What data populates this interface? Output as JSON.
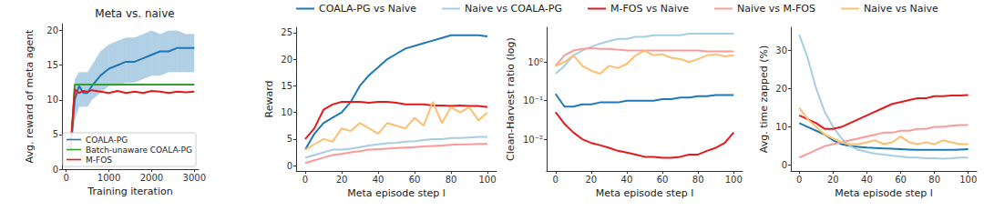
{
  "chart_data": [
    {
      "type": "line",
      "title": "Meta vs. naive",
      "xlabel": "Training iteration",
      "ylabel": "Avg. reward of meta agent",
      "x": [
        100,
        200,
        300,
        400,
        500,
        600,
        800,
        1000,
        1200,
        1400,
        1600,
        1800,
        2000,
        2200,
        2400,
        2600,
        2800,
        3000
      ],
      "xlim": [
        -100,
        3100
      ],
      "xticks": [
        0,
        1000,
        2000,
        3000
      ],
      "ylim": [
        0,
        21
      ],
      "yticks": [
        0,
        5,
        10,
        15,
        20
      ],
      "grid": false,
      "legend": "lower right",
      "series": [
        {
          "name": "COALA-PG",
          "color": "#1f78b4",
          "values": [
            3,
            10,
            12,
            11,
            11,
            12,
            13.5,
            14.5,
            15,
            15.5,
            15.5,
            16,
            16.5,
            17,
            17,
            17.5,
            17.5,
            17.5
          ],
          "lower": [
            1,
            7,
            9,
            9,
            9,
            10,
            11,
            12,
            12,
            12.5,
            12.5,
            13,
            13.5,
            13.5,
            14,
            14,
            14,
            14
          ],
          "upper": [
            5,
            13,
            14,
            14,
            14,
            15,
            17,
            18,
            18.5,
            19,
            19,
            19.5,
            20,
            19.5,
            20,
            20,
            19.5,
            19.5
          ]
        },
        {
          "name": "Batch-unaware COALA-PG",
          "color": "#33a02c",
          "values": [
            2,
            12.2,
            12.2,
            12.2,
            12.2,
            12.2,
            12.2,
            12.2,
            12.2,
            12.2,
            12.2,
            12.2,
            12.2,
            12.2,
            12.2,
            12.2,
            12.2,
            12.2
          ]
        },
        {
          "name": "M-FOS",
          "color": "#e31a1c",
          "values": [
            3,
            11.5,
            11,
            11.3,
            11.2,
            11.4,
            11.2,
            11,
            11.3,
            11,
            11.2,
            11,
            11.3,
            11.2,
            11,
            11.2,
            11.1,
            11.2
          ]
        }
      ]
    },
    {
      "type": "line",
      "xlabel": "Meta episode step l",
      "ylabel": "Reward",
      "x": [
        0,
        5,
        10,
        15,
        20,
        25,
        30,
        35,
        40,
        45,
        50,
        55,
        60,
        65,
        70,
        75,
        80,
        85,
        90,
        95,
        100
      ],
      "xlim": [
        -5,
        105
      ],
      "xticks": [
        0,
        20,
        40,
        60,
        80,
        100
      ],
      "ylim": [
        -1,
        26
      ],
      "yticks": [
        0,
        5,
        10,
        15,
        20,
        25
      ],
      "grid": false,
      "legend": "top",
      "series": [
        {
          "name": "COALA-PG vs Naive",
          "color": "#1f78b4",
          "values": [
            3,
            6,
            8,
            9,
            10,
            12,
            15,
            17,
            18.5,
            20,
            21,
            22,
            22.5,
            23,
            23.5,
            24,
            24.5,
            24.5,
            24.5,
            24.5,
            24.3
          ]
        },
        {
          "name": "Naive vs COALA-PG",
          "color": "#a6cee3",
          "values": [
            1.5,
            2,
            2.5,
            3,
            3,
            3.2,
            3.5,
            3.8,
            4,
            4.2,
            4.3,
            4.5,
            4.6,
            4.8,
            5,
            5,
            5.2,
            5.2,
            5.3,
            5.4,
            5.4
          ]
        },
        {
          "name": "M-FOS vs Naive",
          "color": "#e31a1c",
          "values": [
            5,
            7,
            10.5,
            11.5,
            12,
            12,
            12,
            11.8,
            12,
            12,
            11.8,
            11.5,
            11.5,
            11.5,
            11.3,
            11.3,
            11.2,
            11.3,
            11.2,
            11.2,
            11
          ]
        },
        {
          "name": "Naive vs M-FOS",
          "color": "#fb9a99",
          "values": [
            0.5,
            1,
            1.5,
            2,
            2.2,
            2.5,
            2.7,
            3,
            3.1,
            3.2,
            3.3,
            3.4,
            3.5,
            3.6,
            3.7,
            3.8,
            3.9,
            4,
            4,
            4.1,
            4.1
          ]
        },
        {
          "name": "Naive vs Naive",
          "color": "#fdbf6f",
          "values": [
            3,
            4,
            5,
            4.5,
            7,
            6.5,
            8,
            7,
            6,
            8,
            7.5,
            7,
            9,
            7.5,
            12,
            8,
            11,
            10,
            11,
            8.5,
            10
          ]
        }
      ]
    },
    {
      "type": "line",
      "log": "y",
      "xlabel": "Meta episode step l",
      "ylabel": "Clean-Harvest ratio (log)",
      "x": [
        0,
        5,
        10,
        15,
        20,
        25,
        30,
        35,
        40,
        45,
        50,
        55,
        60,
        65,
        70,
        75,
        80,
        85,
        90,
        95,
        100
      ],
      "xlim": [
        -5,
        105
      ],
      "xticks": [
        0,
        20,
        40,
        60,
        80,
        100
      ],
      "ylim": [
        0.0015,
        8
      ],
      "yticks": [
        {
          "value": 0.01,
          "label": "10⁻²"
        },
        {
          "value": 0.1,
          "label": "10⁻¹"
        },
        {
          "value": 1,
          "label": "10⁰"
        }
      ],
      "grid": false,
      "series": [
        {
          "name": "COALA-PG vs Naive",
          "color": "#1f78b4",
          "values": [
            0.15,
            0.07,
            0.07,
            0.08,
            0.08,
            0.09,
            0.09,
            0.09,
            0.1,
            0.1,
            0.1,
            0.1,
            0.11,
            0.11,
            0.12,
            0.12,
            0.13,
            0.13,
            0.14,
            0.14,
            0.14
          ]
        },
        {
          "name": "Naive vs COALA-PG",
          "color": "#a6cee3",
          "values": [
            0.5,
            0.8,
            1.5,
            2,
            2.5,
            3,
            3.5,
            4,
            4,
            4.5,
            4.5,
            5,
            5,
            5,
            5,
            5.5,
            5.5,
            5.5,
            5.5,
            5.5,
            5.5
          ]
        },
        {
          "name": "M-FOS vs Naive",
          "color": "#e31a1c",
          "values": [
            0.05,
            0.025,
            0.015,
            0.01,
            0.008,
            0.007,
            0.006,
            0.005,
            0.0045,
            0.004,
            0.0035,
            0.0035,
            0.0033,
            0.0033,
            0.0035,
            0.004,
            0.004,
            0.005,
            0.006,
            0.008,
            0.015
          ]
        },
        {
          "name": "Naive vs M-FOS",
          "color": "#fb9a99",
          "values": [
            0.8,
            1.5,
            2,
            2.2,
            2.3,
            2.2,
            2.2,
            2.1,
            2,
            2,
            2,
            2,
            2,
            2,
            2,
            2,
            2,
            1.9,
            1.9,
            1.9,
            1.9
          ]
        },
        {
          "name": "Naive vs Naive",
          "color": "#fdbf6f",
          "values": [
            0.8,
            1,
            1.5,
            0.8,
            0.6,
            0.5,
            0.8,
            0.7,
            0.9,
            1.5,
            2,
            1.5,
            1.6,
            1.3,
            1.2,
            1,
            1.2,
            1.5,
            1.6,
            1.4,
            1.5
          ]
        }
      ]
    },
    {
      "type": "line",
      "xlabel": "Meta episode step l",
      "ylabel": "Avg. time zapped (%)",
      "x": [
        0,
        5,
        10,
        15,
        20,
        25,
        30,
        35,
        40,
        45,
        50,
        55,
        60,
        65,
        70,
        75,
        80,
        85,
        90,
        95,
        100
      ],
      "xlim": [
        -5,
        105
      ],
      "xticks": [
        0,
        20,
        40,
        60,
        80,
        100
      ],
      "ylim": [
        -1.5,
        36
      ],
      "yticks": [
        0,
        10,
        20,
        30
      ],
      "grid": false,
      "series": [
        {
          "name": "COALA-PG vs Naive",
          "color": "#1f78b4",
          "values": [
            11,
            10,
            9,
            8,
            6.5,
            5.5,
            5,
            4.8,
            4.6,
            4.5,
            4.4,
            4.3,
            4.2,
            4.1,
            4,
            4,
            4,
            4,
            4,
            4.1,
            4.2
          ]
        },
        {
          "name": "Naive vs COALA-PG",
          "color": "#a6cee3",
          "values": [
            34,
            28,
            20,
            14,
            10,
            7,
            5,
            4,
            3.5,
            3,
            2.8,
            2.5,
            2.3,
            2,
            2,
            1.8,
            1.8,
            1.7,
            1.8,
            2,
            2
          ]
        },
        {
          "name": "M-FOS vs Naive",
          "color": "#e31a1c",
          "values": [
            13,
            12,
            11,
            9.5,
            9.5,
            10,
            11,
            12,
            13,
            14,
            15,
            16,
            16.5,
            17,
            17.5,
            17.5,
            18,
            18,
            18.2,
            18.2,
            18.3
          ]
        },
        {
          "name": "Naive vs M-FOS",
          "color": "#fb9a99",
          "values": [
            2,
            3,
            4,
            5,
            5.5,
            6,
            6.5,
            7,
            7.5,
            8,
            8.5,
            8.5,
            9,
            9,
            9.5,
            9.5,
            10,
            10,
            10.3,
            10.5,
            10.5
          ]
        },
        {
          "name": "Naive vs Naive",
          "color": "#fdbf6f",
          "values": [
            15,
            12,
            10,
            8,
            7,
            6,
            5.5,
            5.5,
            6,
            6.5,
            5.5,
            6,
            7.5,
            6,
            5.5,
            6,
            5.5,
            6.5,
            6,
            5.5,
            5.5
          ]
        }
      ]
    }
  ]
}
